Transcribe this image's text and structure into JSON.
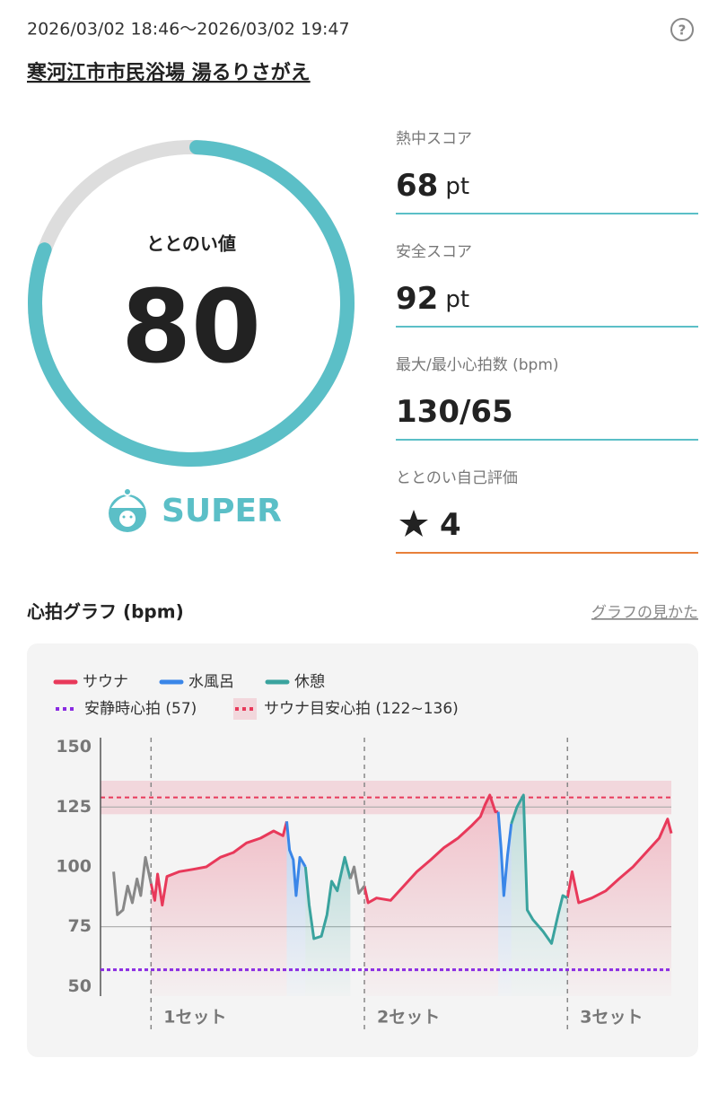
{
  "header": {
    "datetime": "2026/03/02 18:46〜2026/03/02 19:47",
    "help": "?",
    "facility": "寒河江市市民浴場 湯るりさがえ"
  },
  "gauge": {
    "label": "ととのい値",
    "value": 80,
    "max": 100,
    "color": "#5bbfc7",
    "track_color": "#dddddd"
  },
  "badge": {
    "label": "SUPER"
  },
  "stats": [
    {
      "label": "熱中スコア",
      "value": 68,
      "unit": "pt"
    },
    {
      "label": "安全スコア",
      "value": 92,
      "unit": "pt"
    },
    {
      "label": "最大/最小心拍数 (bpm)",
      "value": "130/65"
    },
    {
      "label": "ととのい自己評価",
      "value": 4
    }
  ],
  "chart_data": {
    "type": "line",
    "title": "心拍グラフ (bpm)",
    "link": "グラフの見かた",
    "xlim": [
      0,
      61
    ],
    "ylim": [
      46,
      154
    ],
    "yticks": [
      50,
      75,
      100,
      125,
      150
    ],
    "grid": true,
    "series": [
      {
        "name": "サウナ",
        "color": "#e8395a",
        "x": [
          5.4,
          5.8,
          6.1,
          6.6,
          7.1,
          8.4,
          9.9,
          11.3,
          12.8,
          14.2,
          15.6,
          17.1,
          18.5,
          19.5,
          19.9,
          null,
          28.2,
          28.6,
          29.5,
          31.0,
          32.4,
          33.8,
          35.3,
          36.7,
          38.2,
          39.6,
          40.6,
          41.1,
          41.6,
          42.2,
          42.5,
          null,
          49.9,
          50.4,
          51.1,
          52.5,
          54.0,
          55.4,
          56.9,
          58.3,
          59.7,
          60.6,
          61.0
        ],
        "values": [
          93,
          86,
          97,
          84,
          96,
          98,
          99,
          100,
          104,
          106,
          110,
          112,
          115,
          113,
          119,
          null,
          92,
          85,
          87,
          86,
          92,
          98,
          103,
          108,
          112,
          117,
          121,
          126,
          130,
          123,
          123,
          null,
          87,
          98,
          85,
          87,
          90,
          95,
          100,
          106,
          112,
          120,
          114
        ]
      },
      {
        "name": "水風呂",
        "color": "#3a86e8",
        "x": [
          19.9,
          20.2,
          20.6,
          20.9,
          21.3,
          21.9,
          null,
          42.5,
          42.8,
          43.1,
          43.5,
          43.9
        ],
        "values": [
          119,
          107,
          103,
          88,
          104,
          100,
          null,
          123,
          108,
          88,
          105,
          118
        ]
      },
      {
        "name": "休憩",
        "color": "#3aa39e",
        "x": [
          21.9,
          22.3,
          22.8,
          23.6,
          24.2,
          24.7,
          25.3,
          26.1,
          26.7,
          null,
          43.9,
          44.5,
          45.2,
          45.6,
          46.2,
          47.3,
          48.2,
          48.9,
          49.4,
          49.9
        ],
        "values": [
          100,
          84,
          70,
          71,
          80,
          94,
          90,
          104,
          95,
          null,
          118,
          125,
          130,
          82,
          78,
          73,
          68,
          80,
          88,
          87
        ]
      },
      {
        "color": "#888888",
        "x": [
          1.4,
          1.8,
          2.4,
          2.9,
          3.4,
          3.9,
          4.3,
          4.8,
          5.4,
          null,
          26.7,
          27.1,
          27.6,
          28.2
        ],
        "values": [
          98,
          80,
          82,
          92,
          85,
          95,
          88,
          104,
          93,
          null,
          95,
          100,
          89,
          92
        ]
      }
    ],
    "reference_lines": [
      {
        "name": "安静時心拍 (57)",
        "value": 57,
        "color": "#8a2be2"
      }
    ],
    "bands": [
      {
        "name": "サウナ目安心拍 (122~136)",
        "range": [
          122,
          136
        ],
        "color": "#e8395a"
      }
    ],
    "set_markers": [
      {
        "x": 5.4,
        "label": "1セット"
      },
      {
        "x": 28.2,
        "label": "2セット"
      },
      {
        "x": 49.9,
        "label": "3セット"
      }
    ]
  }
}
